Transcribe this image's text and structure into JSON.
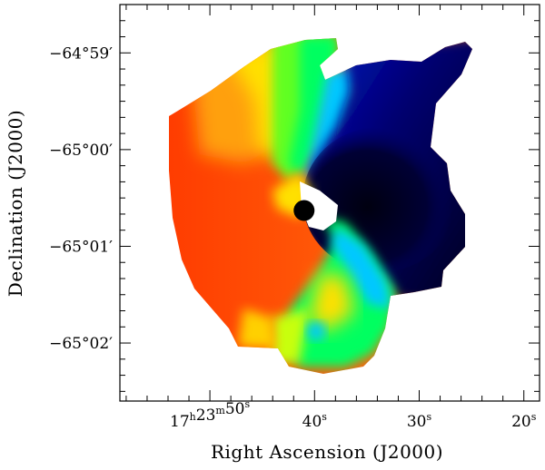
{
  "chart_data": {
    "type": "heatmap",
    "description_kind": "velocity field map",
    "xlabel": "Right Ascension (J2000)",
    "ylabel": "Declination (J2000)",
    "x_ticks": [
      {
        "ra_sec": 50,
        "parts": [
          [
            "17",
            "h"
          ],
          [
            "23",
            "m"
          ],
          [
            "50",
            "s"
          ]
        ]
      },
      {
        "ra_sec": 40,
        "parts": [
          [
            "40",
            "s"
          ]
        ]
      },
      {
        "ra_sec": 30,
        "parts": [
          [
            "30",
            "s"
          ]
        ]
      },
      {
        "ra_sec": 20,
        "parts": [
          [
            "20",
            "s"
          ]
        ]
      }
    ],
    "y_ticks": [
      {
        "dec_arcmin": -59,
        "label": "−64°59′"
      },
      {
        "dec_arcmin": -60,
        "label": "−65°00′"
      },
      {
        "dec_arcmin": -61,
        "label": "−65°01′"
      },
      {
        "dec_arcmin": -62,
        "label": "−65°02′"
      }
    ],
    "xlim_ra_sec": [
      58.6,
      18.5
    ],
    "ylim_dec_arcmin": [
      -62.6,
      -58.5
    ],
    "colormap": [
      "#000020",
      "#0000a0",
      "#00c8ff",
      "#00ff60",
      "#ffff00",
      "#ff7a10",
      "#ff2a00"
    ],
    "center_marker": {
      "ra_sec": 41.0,
      "dec_arcmin": -60.63,
      "color": "#000000"
    },
    "grid": false,
    "legend": "none"
  }
}
